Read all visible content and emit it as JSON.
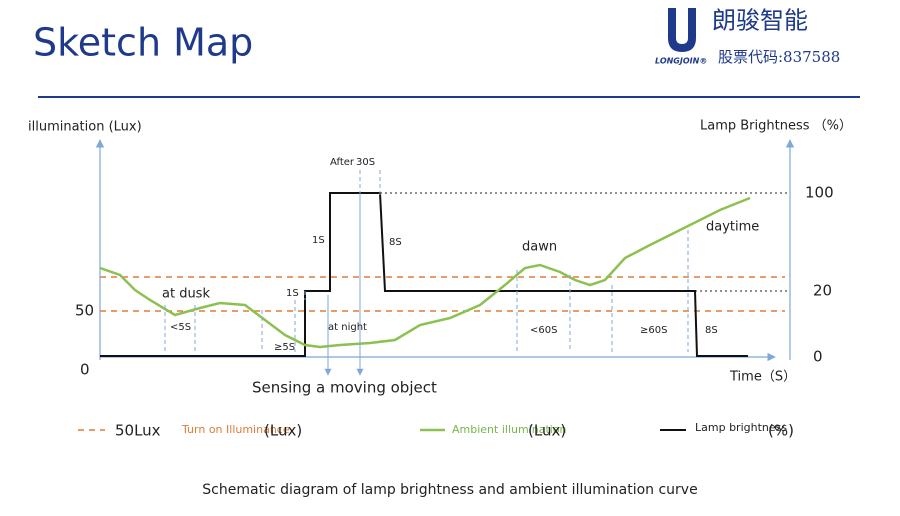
{
  "header": {
    "title": "Sketch Map",
    "logo_name": "朗骏智能",
    "logo_brand": "LONGJOIN®",
    "stock_code": "股票代码:837588"
  },
  "axes": {
    "left_label": "illumination (Lux)",
    "right_label": "Lamp Brightness （%）",
    "x_label": "Time（S）",
    "left_ticks": [
      "50",
      "0"
    ],
    "right_ticks": [
      "100",
      "20",
      "0"
    ]
  },
  "annotations": {
    "after": "After",
    "after_time": "30S",
    "rise_top": "1S",
    "fall_top": "8S",
    "rise_low": "1S",
    "at_dusk": "at dusk",
    "less_5s": "<5S",
    "ge_5s": "≥5S",
    "at_night": "at night",
    "dawn": "dawn",
    "daytime": "daytime",
    "less_60s": "<60S",
    "ge_60s": "≥60S",
    "fall_end": "8S",
    "sensing": "Sensing a moving object"
  },
  "legend": [
    {
      "name": "50Lux",
      "desc": "Turn on Illuminance",
      "unit": "(Lux)"
    },
    {
      "desc": "Ambient illumination",
      "unit": "(Lux)"
    },
    {
      "desc": "Lamp brightness",
      "unit": "(%)"
    }
  ],
  "caption": "Schematic diagram of lamp brightness and ambient illumination curve"
}
